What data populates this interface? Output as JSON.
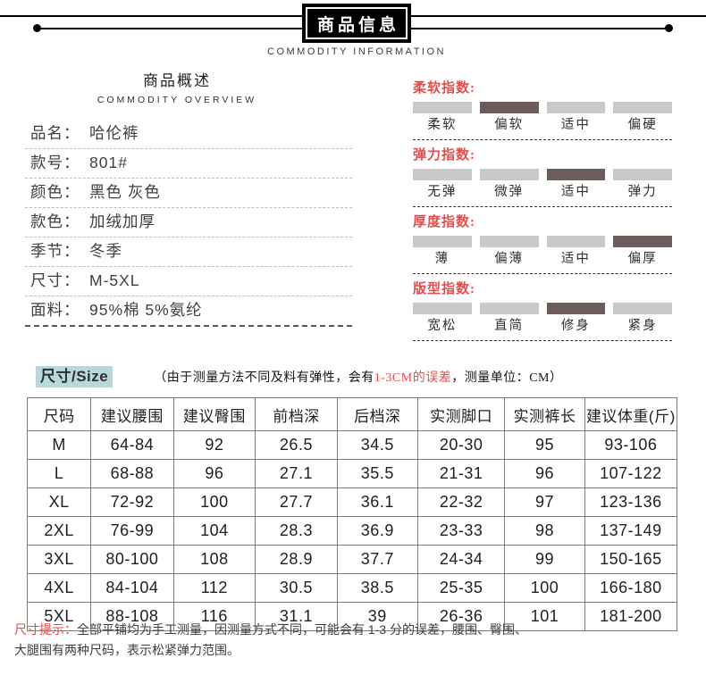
{
  "header": {
    "title": "商品信息",
    "subtitle": "COMMODITY INFORMATION"
  },
  "overview": {
    "title": "商品概述",
    "subtitle": "COMMODITY OVERVIEW",
    "fields": [
      {
        "label": "品名：",
        "value": "哈伦裤"
      },
      {
        "label": "款号：",
        "value": "801#"
      },
      {
        "label": "颜色：",
        "value": "黑色 灰色"
      },
      {
        "label": "款色：",
        "value": "加绒加厚"
      },
      {
        "label": "季节：",
        "value": "冬季"
      },
      {
        "label": "尺寸：",
        "value": "M-5XL"
      },
      {
        "label": "面料：",
        "value": "95%棉 5%氨纶"
      }
    ]
  },
  "indices": [
    {
      "title": "柔软指数:",
      "options": [
        "柔软",
        "偏软",
        "适中",
        "偏硬"
      ],
      "active": 1
    },
    {
      "title": "弹力指数:",
      "options": [
        "无弹",
        "微弹",
        "适中",
        "弹力"
      ],
      "active": 2
    },
    {
      "title": "厚度指数:",
      "options": [
        "薄",
        "偏薄",
        "适中",
        "偏厚"
      ],
      "active": 3
    },
    {
      "title": "版型指数:",
      "options": [
        "宽松",
        "直简",
        "修身",
        "紧身"
      ],
      "active": 2
    }
  ],
  "size_section": {
    "badge": "尺寸/Size",
    "note_prefix": "（由于测量方法不同及料有弹性，会有",
    "note_red": "1-3CM的误差",
    "note_suffix": "，测量单位：CM）",
    "table": {
      "headers": [
        "尺码",
        "建议腰围",
        "建议臀围",
        "前档深",
        "后档深",
        "实测脚口",
        "实测裤长",
        "建议体重(斤)"
      ],
      "rows": [
        [
          "M",
          "64-84",
          "92",
          "26.5",
          "34.5",
          "20-30",
          "95",
          "93-106"
        ],
        [
          "L",
          "68-88",
          "96",
          "27.1",
          "35.5",
          "21-31",
          "96",
          "107-122"
        ],
        [
          "XL",
          "72-92",
          "100",
          "27.7",
          "36.1",
          "22-32",
          "97",
          "123-136"
        ],
        [
          "2XL",
          "76-99",
          "104",
          "28.3",
          "36.9",
          "23-33",
          "98",
          "137-149"
        ],
        [
          "3XL",
          "80-100",
          "108",
          "28.9",
          "37.7",
          "24-34",
          "99",
          "150-165"
        ],
        [
          "4XL",
          "84-104",
          "112",
          "30.5",
          "38.5",
          "25-35",
          "100",
          "166-180"
        ],
        [
          "5XL",
          "88-108",
          "116",
          "31.1",
          "39",
          "26-36",
          "101",
          "181-200"
        ]
      ]
    }
  },
  "footnote": {
    "label": "尺寸提示：",
    "line1": "全部平铺均为手工测量，因测量方式不同，可能会有 1-3 分的误差，腰围、臀围、",
    "line2": "大腿围有两种尺码，表示松紧弹力范围。"
  },
  "colors": {
    "accent_red": "#e94b4b",
    "bar_inactive": "#c9c9c9",
    "bar_active": "#6d5c5c",
    "badge_bg": "#b7d8dc"
  }
}
